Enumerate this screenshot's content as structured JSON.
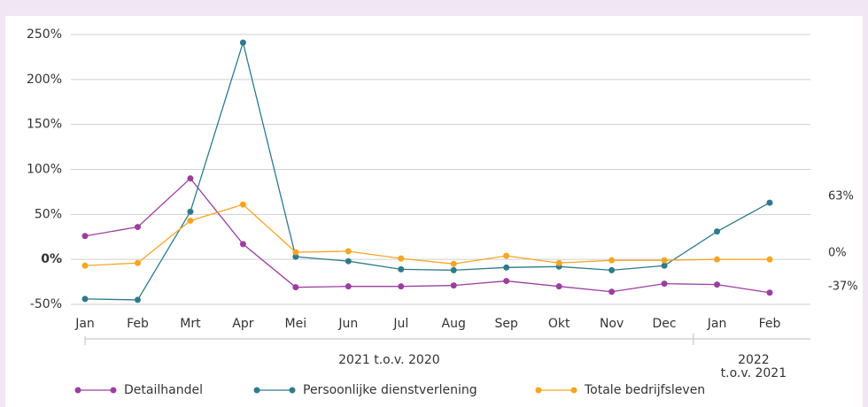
{
  "chart_data": {
    "type": "line",
    "categories": [
      "Jan",
      "Feb",
      "Mrt",
      "Apr",
      "Mei",
      "Jun",
      "Jul",
      "Aug",
      "Sep",
      "Okt",
      "Nov",
      "Dec",
      "Jan",
      "Feb"
    ],
    "x_groups": [
      [
        "2021 t.o.v. 2020"
      ],
      [
        "2022",
        "t.o.v. 2021"
      ]
    ],
    "series": [
      {
        "name": "Detailhandel",
        "color": "#9b3f9f",
        "values": [
          26,
          36,
          90,
          17,
          -31,
          -30,
          -30,
          -29,
          -24,
          -30,
          -36,
          -27,
          -28,
          -37
        ],
        "value_labels": [
          null,
          null,
          null,
          null,
          null,
          null,
          null,
          null,
          null,
          null,
          null,
          null,
          null,
          "-37%"
        ]
      },
      {
        "name": "Persoonlijke dienstverlening",
        "color": "#2e7a8c",
        "values": [
          -44,
          -45,
          53,
          241,
          3,
          -2,
          -11,
          -12,
          -9,
          -8,
          -12,
          -7,
          31,
          63
        ],
        "value_labels": [
          null,
          null,
          null,
          null,
          null,
          null,
          null,
          null,
          null,
          null,
          null,
          null,
          null,
          "63%"
        ]
      },
      {
        "name": "Totale bedrijfsleven",
        "color": "#f5a623",
        "values": [
          -7,
          -4,
          43,
          61,
          8,
          9,
          1,
          -5,
          4,
          -4,
          -1,
          -1,
          0,
          0
        ],
        "value_labels": [
          null,
          null,
          null,
          null,
          null,
          null,
          null,
          null,
          null,
          null,
          null,
          null,
          null,
          "0%"
        ]
      }
    ],
    "ylim": [
      -50,
      250
    ],
    "yticks": [
      {
        "value": -50,
        "label": "-50%"
      },
      {
        "value": 0,
        "label": "0%"
      },
      {
        "value": 50,
        "label": "50%"
      },
      {
        "value": 100,
        "label": "100%"
      },
      {
        "value": 150,
        "label": "150%"
      },
      {
        "value": 200,
        "label": "200%"
      },
      {
        "value": 250,
        "label": "250%"
      }
    ],
    "grid": true,
    "legend": "bottom"
  }
}
